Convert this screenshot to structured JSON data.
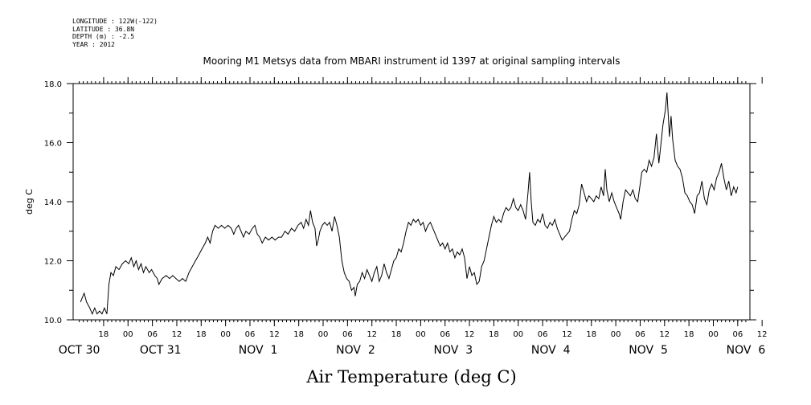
{
  "header": {
    "lines": [
      "LONGITUDE : 122W(-122)",
      "LATITUDE : 36.8N",
      "DEPTH (m) : -2.5",
      "YEAR : 2012"
    ]
  },
  "chart_data": {
    "type": "line",
    "title": "Mooring M1 Metsys data from MBARI instrument id 1397 at original sampling intervals",
    "xlabel": "Air Temperature (deg C)",
    "ylabel": "deg C",
    "ylim": [
      10.0,
      18.0
    ],
    "y_ticks": [
      "10.0",
      "12.0",
      "14.0",
      "16.0",
      "18.0"
    ],
    "hour_ticks": [
      {
        "t": 18,
        "label": "18"
      },
      {
        "t": 24,
        "label": "00"
      },
      {
        "t": 30,
        "label": "06"
      },
      {
        "t": 36,
        "label": "12"
      },
      {
        "t": 42,
        "label": "18"
      },
      {
        "t": 48,
        "label": "00"
      },
      {
        "t": 54,
        "label": "06"
      },
      {
        "t": 60,
        "label": "12"
      },
      {
        "t": 66,
        "label": "18"
      },
      {
        "t": 72,
        "label": "00"
      },
      {
        "t": 78,
        "label": "06"
      },
      {
        "t": 84,
        "label": "12"
      },
      {
        "t": 90,
        "label": "18"
      },
      {
        "t": 96,
        "label": "00"
      },
      {
        "t": 102,
        "label": "06"
      },
      {
        "t": 108,
        "label": "12"
      },
      {
        "t": 114,
        "label": "18"
      },
      {
        "t": 120,
        "label": "00"
      },
      {
        "t": 126,
        "label": "06"
      },
      {
        "t": 132,
        "label": "12"
      },
      {
        "t": 138,
        "label": "18"
      },
      {
        "t": 144,
        "label": "00"
      },
      {
        "t": 150,
        "label": "06"
      },
      {
        "t": 156,
        "label": "12"
      },
      {
        "t": 162,
        "label": "18"
      },
      {
        "t": 168,
        "label": "00"
      },
      {
        "t": 174,
        "label": "06"
      },
      {
        "t": 180,
        "label": "12"
      }
    ],
    "day_labels": [
      {
        "t": 12,
        "label": "OCT 30"
      },
      {
        "t": 32,
        "label": "OCT 31"
      },
      {
        "t": 56,
        "label": "NOV  1"
      },
      {
        "t": 80,
        "label": "NOV  2"
      },
      {
        "t": 104,
        "label": "NOV  3"
      },
      {
        "t": 128,
        "label": "NOV  4"
      },
      {
        "t": 152,
        "label": "NOV  5"
      },
      {
        "t": 176,
        "label": "NOV  6"
      }
    ],
    "x_start_label": "Oct 30 12:00",
    "series": [
      {
        "points": [
          [
            12.3,
            10.6
          ],
          [
            13.2,
            10.9
          ],
          [
            13.8,
            10.6
          ],
          [
            14.6,
            10.4
          ],
          [
            15.2,
            10.2
          ],
          [
            15.8,
            10.4
          ],
          [
            16.4,
            10.2
          ],
          [
            17.0,
            10.3
          ],
          [
            17.6,
            10.2
          ],
          [
            18.2,
            10.4
          ],
          [
            18.8,
            10.2
          ],
          [
            19.3,
            11.2
          ],
          [
            19.8,
            11.6
          ],
          [
            20.4,
            11.5
          ],
          [
            21.0,
            11.8
          ],
          [
            21.8,
            11.7
          ],
          [
            22.6,
            11.9
          ],
          [
            23.4,
            12.0
          ],
          [
            24.2,
            11.9
          ],
          [
            24.8,
            12.1
          ],
          [
            25.4,
            11.8
          ],
          [
            26.0,
            12.0
          ],
          [
            26.6,
            11.7
          ],
          [
            27.2,
            11.9
          ],
          [
            27.8,
            11.6
          ],
          [
            28.4,
            11.8
          ],
          [
            29.2,
            11.6
          ],
          [
            29.8,
            11.7
          ],
          [
            30.6,
            11.5
          ],
          [
            31.2,
            11.4
          ],
          [
            31.6,
            11.2
          ],
          [
            32.4,
            11.4
          ],
          [
            33.4,
            11.5
          ],
          [
            34.2,
            11.4
          ],
          [
            35.0,
            11.5
          ],
          [
            35.8,
            11.4
          ],
          [
            36.6,
            11.3
          ],
          [
            37.4,
            11.4
          ],
          [
            38.2,
            11.3
          ],
          [
            39.0,
            11.6
          ],
          [
            39.8,
            11.8
          ],
          [
            40.6,
            12.0
          ],
          [
            41.4,
            12.2
          ],
          [
            42.2,
            12.4
          ],
          [
            43.0,
            12.6
          ],
          [
            43.6,
            12.8
          ],
          [
            44.2,
            12.6
          ],
          [
            44.8,
            13.0
          ],
          [
            45.4,
            13.2
          ],
          [
            46.2,
            13.1
          ],
          [
            47.0,
            13.2
          ],
          [
            47.8,
            13.1
          ],
          [
            48.6,
            13.2
          ],
          [
            49.4,
            13.1
          ],
          [
            50.0,
            12.9
          ],
          [
            50.6,
            13.1
          ],
          [
            51.2,
            13.2
          ],
          [
            51.8,
            13.0
          ],
          [
            52.4,
            12.8
          ],
          [
            53.0,
            13.0
          ],
          [
            53.8,
            12.9
          ],
          [
            54.6,
            13.1
          ],
          [
            55.2,
            13.2
          ],
          [
            55.8,
            12.9
          ],
          [
            56.4,
            12.8
          ],
          [
            57.0,
            12.6
          ],
          [
            57.8,
            12.8
          ],
          [
            58.6,
            12.7
          ],
          [
            59.4,
            12.8
          ],
          [
            60.2,
            12.7
          ],
          [
            61.0,
            12.8
          ],
          [
            61.8,
            12.8
          ],
          [
            62.6,
            13.0
          ],
          [
            63.4,
            12.9
          ],
          [
            64.2,
            13.1
          ],
          [
            65.0,
            13.0
          ],
          [
            65.8,
            13.2
          ],
          [
            66.6,
            13.3
          ],
          [
            67.2,
            13.1
          ],
          [
            67.8,
            13.4
          ],
          [
            68.4,
            13.2
          ],
          [
            68.9,
            13.7
          ],
          [
            69.4,
            13.3
          ],
          [
            70.0,
            13.1
          ],
          [
            70.4,
            12.5
          ],
          [
            70.8,
            12.7
          ],
          [
            71.2,
            13.0
          ],
          [
            71.8,
            13.2
          ],
          [
            72.4,
            13.3
          ],
          [
            73.0,
            13.2
          ],
          [
            73.6,
            13.3
          ],
          [
            74.2,
            13.0
          ],
          [
            74.8,
            13.5
          ],
          [
            75.4,
            13.2
          ],
          [
            76.0,
            12.8
          ],
          [
            76.6,
            12.0
          ],
          [
            77.2,
            11.6
          ],
          [
            77.8,
            11.4
          ],
          [
            78.4,
            11.3
          ],
          [
            79.0,
            11.0
          ],
          [
            79.6,
            11.1
          ],
          [
            79.9,
            10.8
          ],
          [
            80.4,
            11.2
          ],
          [
            81.0,
            11.3
          ],
          [
            81.6,
            11.6
          ],
          [
            82.2,
            11.4
          ],
          [
            82.8,
            11.7
          ],
          [
            83.4,
            11.5
          ],
          [
            84.0,
            11.3
          ],
          [
            84.6,
            11.6
          ],
          [
            85.2,
            11.8
          ],
          [
            85.8,
            11.3
          ],
          [
            86.4,
            11.5
          ],
          [
            87.0,
            11.9
          ],
          [
            87.6,
            11.6
          ],
          [
            88.2,
            11.4
          ],
          [
            88.8,
            11.7
          ],
          [
            89.4,
            12.0
          ],
          [
            90.0,
            12.1
          ],
          [
            90.6,
            12.4
          ],
          [
            91.2,
            12.3
          ],
          [
            91.8,
            12.6
          ],
          [
            92.4,
            13.0
          ],
          [
            93.0,
            13.3
          ],
          [
            93.6,
            13.2
          ],
          [
            94.2,
            13.4
          ],
          [
            94.8,
            13.3
          ],
          [
            95.4,
            13.4
          ],
          [
            96.0,
            13.2
          ],
          [
            96.6,
            13.3
          ],
          [
            97.2,
            13.0
          ],
          [
            97.8,
            13.2
          ],
          [
            98.4,
            13.3
          ],
          [
            99.0,
            13.1
          ],
          [
            99.6,
            12.9
          ],
          [
            100.2,
            12.7
          ],
          [
            100.8,
            12.5
          ],
          [
            101.4,
            12.6
          ],
          [
            102.0,
            12.4
          ],
          [
            102.6,
            12.6
          ],
          [
            103.2,
            12.3
          ],
          [
            103.8,
            12.4
          ],
          [
            104.4,
            12.1
          ],
          [
            105.0,
            12.3
          ],
          [
            105.6,
            12.2
          ],
          [
            106.2,
            12.4
          ],
          [
            106.8,
            12.1
          ],
          [
            107.4,
            11.4
          ],
          [
            108.0,
            11.8
          ],
          [
            108.6,
            11.5
          ],
          [
            109.2,
            11.6
          ],
          [
            109.8,
            11.2
          ],
          [
            110.4,
            11.3
          ],
          [
            111.0,
            11.8
          ],
          [
            111.6,
            12.0
          ],
          [
            112.2,
            12.4
          ],
          [
            112.8,
            12.8
          ],
          [
            113.4,
            13.2
          ],
          [
            114.0,
            13.5
          ],
          [
            114.6,
            13.3
          ],
          [
            115.2,
            13.4
          ],
          [
            115.8,
            13.3
          ],
          [
            116.4,
            13.6
          ],
          [
            117.0,
            13.8
          ],
          [
            117.6,
            13.7
          ],
          [
            118.2,
            13.8
          ],
          [
            118.8,
            14.1
          ],
          [
            119.4,
            13.8
          ],
          [
            120.0,
            13.7
          ],
          [
            120.6,
            13.9
          ],
          [
            121.2,
            13.7
          ],
          [
            121.8,
            13.4
          ],
          [
            122.4,
            14.3
          ],
          [
            122.8,
            15.0
          ],
          [
            123.2,
            14.0
          ],
          [
            123.6,
            13.3
          ],
          [
            124.2,
            13.2
          ],
          [
            124.8,
            13.4
          ],
          [
            125.4,
            13.3
          ],
          [
            126.0,
            13.6
          ],
          [
            126.6,
            13.2
          ],
          [
            127.2,
            13.1
          ],
          [
            127.8,
            13.3
          ],
          [
            128.4,
            13.2
          ],
          [
            129.0,
            13.4
          ],
          [
            129.6,
            13.1
          ],
          [
            130.2,
            12.9
          ],
          [
            130.8,
            12.7
          ],
          [
            131.4,
            12.8
          ],
          [
            132.0,
            12.9
          ],
          [
            132.6,
            13.0
          ],
          [
            133.2,
            13.4
          ],
          [
            133.8,
            13.7
          ],
          [
            134.4,
            13.6
          ],
          [
            135.0,
            13.9
          ],
          [
            135.6,
            14.6
          ],
          [
            136.2,
            14.3
          ],
          [
            136.8,
            14.0
          ],
          [
            137.4,
            14.2
          ],
          [
            138.0,
            14.1
          ],
          [
            138.6,
            14.0
          ],
          [
            139.2,
            14.2
          ],
          [
            139.8,
            14.1
          ],
          [
            140.4,
            14.5
          ],
          [
            141.0,
            14.2
          ],
          [
            141.4,
            15.1
          ],
          [
            141.8,
            14.4
          ],
          [
            142.4,
            14.0
          ],
          [
            143.0,
            14.3
          ],
          [
            143.6,
            14.0
          ],
          [
            144.2,
            13.8
          ],
          [
            144.8,
            13.6
          ],
          [
            145.2,
            13.4
          ],
          [
            145.8,
            14.0
          ],
          [
            146.4,
            14.4
          ],
          [
            147.0,
            14.3
          ],
          [
            147.6,
            14.2
          ],
          [
            148.2,
            14.4
          ],
          [
            148.8,
            14.1
          ],
          [
            149.4,
            14.0
          ],
          [
            150.0,
            14.6
          ],
          [
            150.4,
            15.0
          ],
          [
            151.0,
            15.1
          ],
          [
            151.6,
            15.0
          ],
          [
            152.2,
            15.4
          ],
          [
            152.8,
            15.2
          ],
          [
            153.4,
            15.5
          ],
          [
            154.0,
            16.3
          ],
          [
            154.6,
            15.3
          ],
          [
            155.0,
            15.8
          ],
          [
            155.6,
            16.6
          ],
          [
            156.2,
            17.1
          ],
          [
            156.6,
            17.7
          ],
          [
            157.2,
            16.2
          ],
          [
            157.6,
            16.9
          ],
          [
            158.0,
            16.1
          ],
          [
            158.6,
            15.4
          ],
          [
            159.2,
            15.2
          ],
          [
            159.8,
            15.1
          ],
          [
            160.4,
            14.8
          ],
          [
            161.0,
            14.3
          ],
          [
            161.6,
            14.2
          ],
          [
            162.2,
            14.0
          ],
          [
            162.8,
            13.9
          ],
          [
            163.4,
            13.6
          ],
          [
            164.0,
            14.2
          ],
          [
            164.6,
            14.3
          ],
          [
            165.2,
            14.7
          ],
          [
            165.8,
            14.1
          ],
          [
            166.4,
            13.9
          ],
          [
            167.0,
            14.4
          ],
          [
            167.6,
            14.6
          ],
          [
            168.2,
            14.4
          ],
          [
            168.8,
            14.8
          ],
          [
            169.4,
            15.0
          ],
          [
            170.0,
            15.3
          ],
          [
            170.6,
            14.8
          ],
          [
            171.2,
            14.4
          ],
          [
            171.8,
            14.7
          ],
          [
            172.4,
            14.2
          ],
          [
            173.0,
            14.5
          ],
          [
            173.6,
            14.3
          ],
          [
            174.0,
            14.5
          ]
        ]
      }
    ]
  }
}
